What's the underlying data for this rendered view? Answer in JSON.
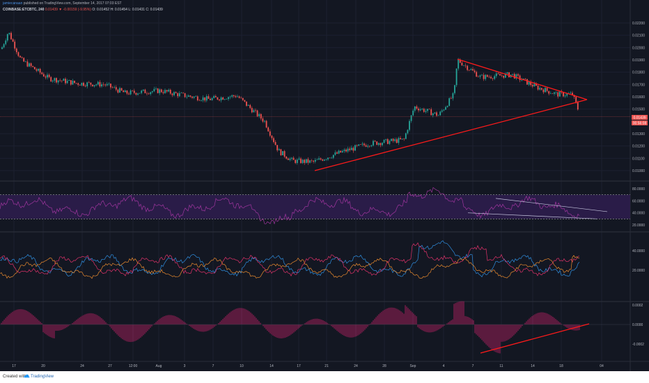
{
  "header": {
    "user": "jamiecanaan",
    "published": "published on TradingView.com, September 14, 2017 07:03 EST",
    "symbol": "COINBASE:ETCBTC, 240",
    "change": "0.01439 ▼ -0.00159 (-9.95%)",
    "ohlc": "O: 0.01452 H: 0.01454 L: 0.01431 C: 0.01439"
  },
  "price_axis": [
    "0.02200",
    "0.02100",
    "0.02000",
    "0.01900",
    "0.01800",
    "0.01700",
    "0.01600",
    "0.01500",
    "0.01300",
    "0.01200",
    "0.01100",
    "0.01000"
  ],
  "price_tags": {
    "last": "0.01439",
    "countdown": "00:56:08",
    "color": "#ef5350"
  },
  "rsi_axis": [
    "80.0000",
    "60.0000",
    "40.0000",
    "20.0000"
  ],
  "dmi_axis": [
    "40.0000",
    "20.0000"
  ],
  "macd_axis": [
    "0.0002",
    "0.0000",
    "-0.0002"
  ],
  "time_axis": [
    "17",
    "20",
    "24",
    "27",
    "12:00",
    "Aug",
    "3",
    "7",
    "10",
    "14",
    "17",
    "21",
    "24",
    "28",
    "Sep",
    "4",
    "7",
    "11",
    "14",
    "18",
    "04"
  ],
  "footer": {
    "created": "Created with",
    "brand": "TradingView"
  },
  "colors": {
    "background": "#131722",
    "bull": "#26a69a",
    "bear": "#ef5350",
    "trendline": "#ff1a1a",
    "rsi_band": "#2d1d4d",
    "rsi_line": "#a0359f",
    "dmi_plus": "#2f8fe0",
    "dmi_minus": "#e0326a",
    "adx": "#e98a2e",
    "macd_hist": "#a31f5a"
  },
  "icons": {
    "logo": "tradingview-cloud-icon"
  }
}
